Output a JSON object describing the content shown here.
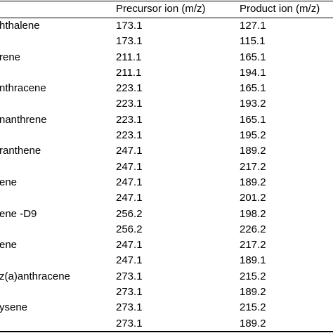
{
  "table": {
    "headers": {
      "compound": "",
      "precursor": "Precursor ion (m/z)",
      "product": "Product ion (m/z)"
    },
    "rows": [
      {
        "compound": "hthalene",
        "precursor": "173.1",
        "product": "127.1"
      },
      {
        "compound": "",
        "precursor": "173.1",
        "product": "115.1"
      },
      {
        "compound": "rene",
        "precursor": "211.1",
        "product": "165.1"
      },
      {
        "compound": "",
        "precursor": "211.1",
        "product": "194.1"
      },
      {
        "compound": "nthracene",
        "precursor": "223.1",
        "product": "165.1"
      },
      {
        "compound": "",
        "precursor": "223.1",
        "product": "193.2"
      },
      {
        "compound": "nanthrene",
        "precursor": "223.1",
        "product": "165.1"
      },
      {
        "compound": "",
        "precursor": "223.1",
        "product": "195.2"
      },
      {
        "compound": "ranthene",
        "precursor": "247.1",
        "product": "189.2"
      },
      {
        "compound": "",
        "precursor": "247.1",
        "product": "217.2"
      },
      {
        "compound": "ene",
        "precursor": "247.1",
        "product": "189.2"
      },
      {
        "compound": "",
        "precursor": "247.1",
        "product": "201.2"
      },
      {
        "compound": "ene -D9",
        "precursor": "256.2",
        "product": "198.2"
      },
      {
        "compound": "",
        "precursor": "256.2",
        "product": "226.2"
      },
      {
        "compound": "ene",
        "precursor": "247.1",
        "product": "217.2"
      },
      {
        "compound": "",
        "precursor": "247.1",
        "product": "189.1"
      },
      {
        "compound": "z(a)anthracene",
        "precursor": "273.1",
        "product": "215.2"
      },
      {
        "compound": "",
        "precursor": "273.1",
        "product": "189.2"
      },
      {
        "compound": "ysene",
        "precursor": "273.1",
        "product": "215.2"
      },
      {
        "compound": "",
        "precursor": "273.1",
        "product": "189.2"
      }
    ]
  }
}
